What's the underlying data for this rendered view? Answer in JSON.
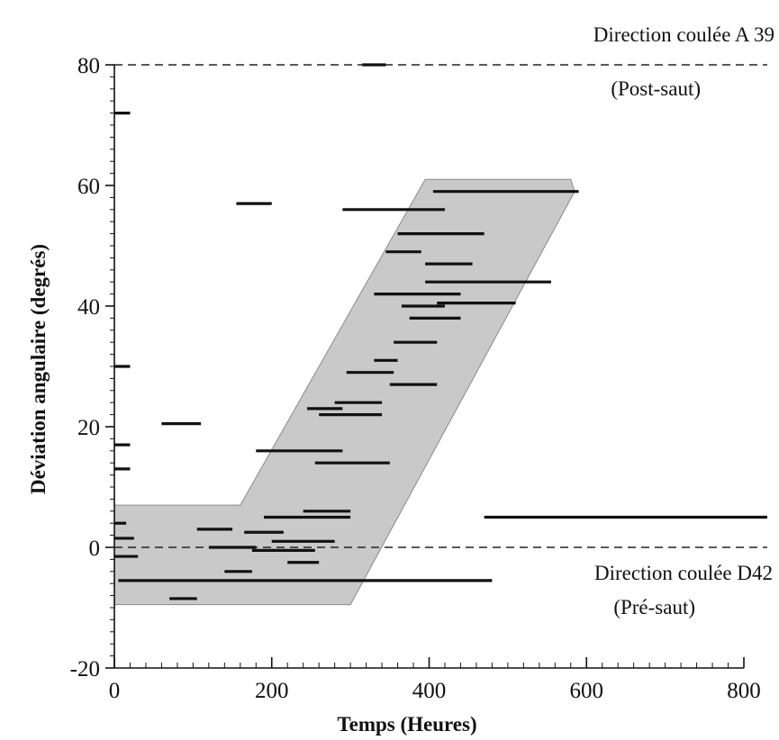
{
  "chart_data": {
    "type": "scatter",
    "title": "",
    "xlabel": "Temps (Heures)",
    "ylabel": "Déviation angulaire (degrés)",
    "xlim": [
      0,
      800
    ],
    "ylim": [
      -20,
      80
    ],
    "xticks": [
      "0",
      "200",
      "400",
      "600",
      "800"
    ],
    "yticks": [
      "-20",
      "0",
      "20",
      "40",
      "60",
      "80"
    ],
    "grid": false,
    "reference_lines": [
      {
        "y": 80,
        "style": "dashed",
        "labels": [
          "Direction coulée A 39",
          "(Post-saut)"
        ]
      },
      {
        "y": 0,
        "style": "dashed",
        "labels": [
          "Direction coulée D42",
          "(Pré-saut)"
        ]
      }
    ],
    "shaded_band": {
      "color": "#b7b7b7",
      "polygon": [
        [
          0,
          -9.5
        ],
        [
          300,
          -9.5
        ],
        [
          585,
          59
        ],
        [
          580,
          61
        ],
        [
          395,
          61
        ],
        [
          160,
          7
        ],
        [
          0,
          7
        ]
      ]
    },
    "segments": [
      {
        "x": [
          0,
          20
        ],
        "y": 72
      },
      {
        "x": [
          0,
          20
        ],
        "y": 30
      },
      {
        "x": [
          0,
          20
        ],
        "y": 17
      },
      {
        "x": [
          0,
          20
        ],
        "y": 13
      },
      {
        "x": [
          0,
          15
        ],
        "y": 4
      },
      {
        "x": [
          0,
          25
        ],
        "y": 1.5
      },
      {
        "x": [
          0,
          30
        ],
        "y": -1.5
      },
      {
        "x": [
          5,
          480
        ],
        "y": -5.5
      },
      {
        "x": [
          60,
          110
        ],
        "y": 20.5
      },
      {
        "x": [
          70,
          105
        ],
        "y": -8.5
      },
      {
        "x": [
          105,
          150
        ],
        "y": 3
      },
      {
        "x": [
          120,
          180
        ],
        "y": 0
      },
      {
        "x": [
          140,
          175
        ],
        "y": -4
      },
      {
        "x": [
          155,
          200
        ],
        "y": 57
      },
      {
        "x": [
          165,
          215
        ],
        "y": 2.5
      },
      {
        "x": [
          175,
          255
        ],
        "y": -0.5
      },
      {
        "x": [
          180,
          290
        ],
        "y": 16
      },
      {
        "x": [
          190,
          300
        ],
        "y": 5
      },
      {
        "x": [
          200,
          280
        ],
        "y": 1
      },
      {
        "x": [
          220,
          260
        ],
        "y": -2.5
      },
      {
        "x": [
          240,
          300
        ],
        "y": 6
      },
      {
        "x": [
          245,
          290
        ],
        "y": 23
      },
      {
        "x": [
          255,
          350
        ],
        "y": 14
      },
      {
        "x": [
          260,
          340
        ],
        "y": 22
      },
      {
        "x": [
          280,
          340
        ],
        "y": 24
      },
      {
        "x": [
          290,
          420
        ],
        "y": 56
      },
      {
        "x": [
          295,
          355
        ],
        "y": 29
      },
      {
        "x": [
          315,
          345
        ],
        "y": 80
      },
      {
        "x": [
          330,
          360
        ],
        "y": 31
      },
      {
        "x": [
          330,
          440
        ],
        "y": 42
      },
      {
        "x": [
          345,
          390
        ],
        "y": 49
      },
      {
        "x": [
          350,
          410
        ],
        "y": 27
      },
      {
        "x": [
          355,
          410
        ],
        "y": 34
      },
      {
        "x": [
          360,
          470
        ],
        "y": 52
      },
      {
        "x": [
          365,
          420
        ],
        "y": 40
      },
      {
        "x": [
          375,
          440
        ],
        "y": 38
      },
      {
        "x": [
          395,
          555
        ],
        "y": 44
      },
      {
        "x": [
          395,
          455
        ],
        "y": 47
      },
      {
        "x": [
          405,
          590
        ],
        "y": 59
      },
      {
        "x": [
          410,
          510
        ],
        "y": 40.5
      },
      {
        "x": [
          470,
          880
        ],
        "y": 5
      }
    ]
  }
}
